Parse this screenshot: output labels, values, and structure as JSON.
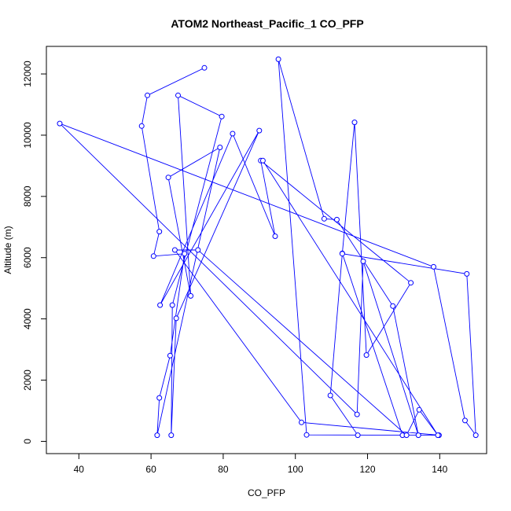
{
  "chart_data": {
    "type": "line",
    "title": "ATOM2 Northeast_Pacific_1 CO_PFP",
    "xlabel": "CO_PFP",
    "ylabel": "Altitude (m)",
    "xlim": [
      31,
      153
    ],
    "ylim": [
      -400,
      12900
    ],
    "x_ticks": [
      40,
      60,
      80,
      100,
      120,
      140
    ],
    "y_ticks": [
      0,
      2000,
      4000,
      6000,
      8000,
      10000,
      12000
    ],
    "points_style": "open circles connected by lines",
    "color": "#0000ff",
    "series": [
      {
        "x": [
          74.8,
          59.0,
          57.4,
          62.3,
          60.7,
          69.3,
          65.3,
          62.3,
          61.7,
          79.1,
          64.8,
          71.0,
          67.5,
          79.6,
          65.9,
          65.6,
          67.0,
          90.0,
          62.5,
          82.6,
          94.4,
          90.4,
          132.0,
          119.7,
          116.4,
          113.0,
          129.7,
          103.1,
          95.3,
          108.0,
          111.5,
          127.0,
          134.1,
          118.8,
          117.1,
          34.7,
          138.3,
          147.0,
          150.0,
          147.5,
          113.0,
          109.7,
          117.3,
          139.8,
          101.7,
          66.6,
          73.0,
          130.8,
          134.3,
          139.5,
          91.0
        ],
        "y": [
          12200,
          11300,
          10300,
          6850,
          6050,
          6130,
          2800,
          1420,
          200,
          9600,
          8620,
          4750,
          11300,
          10610,
          4450,
          200,
          4020,
          10150,
          4450,
          10050,
          6700,
          9170,
          5180,
          2820,
          10420,
          6140,
          200,
          210,
          12480,
          7270,
          7240,
          4420,
          200,
          5880,
          880,
          10380,
          5700,
          680,
          200,
          5470,
          6130,
          1500,
          200,
          200,
          620,
          6250,
          6250,
          200,
          1030,
          200,
          9170
        ]
      }
    ]
  }
}
